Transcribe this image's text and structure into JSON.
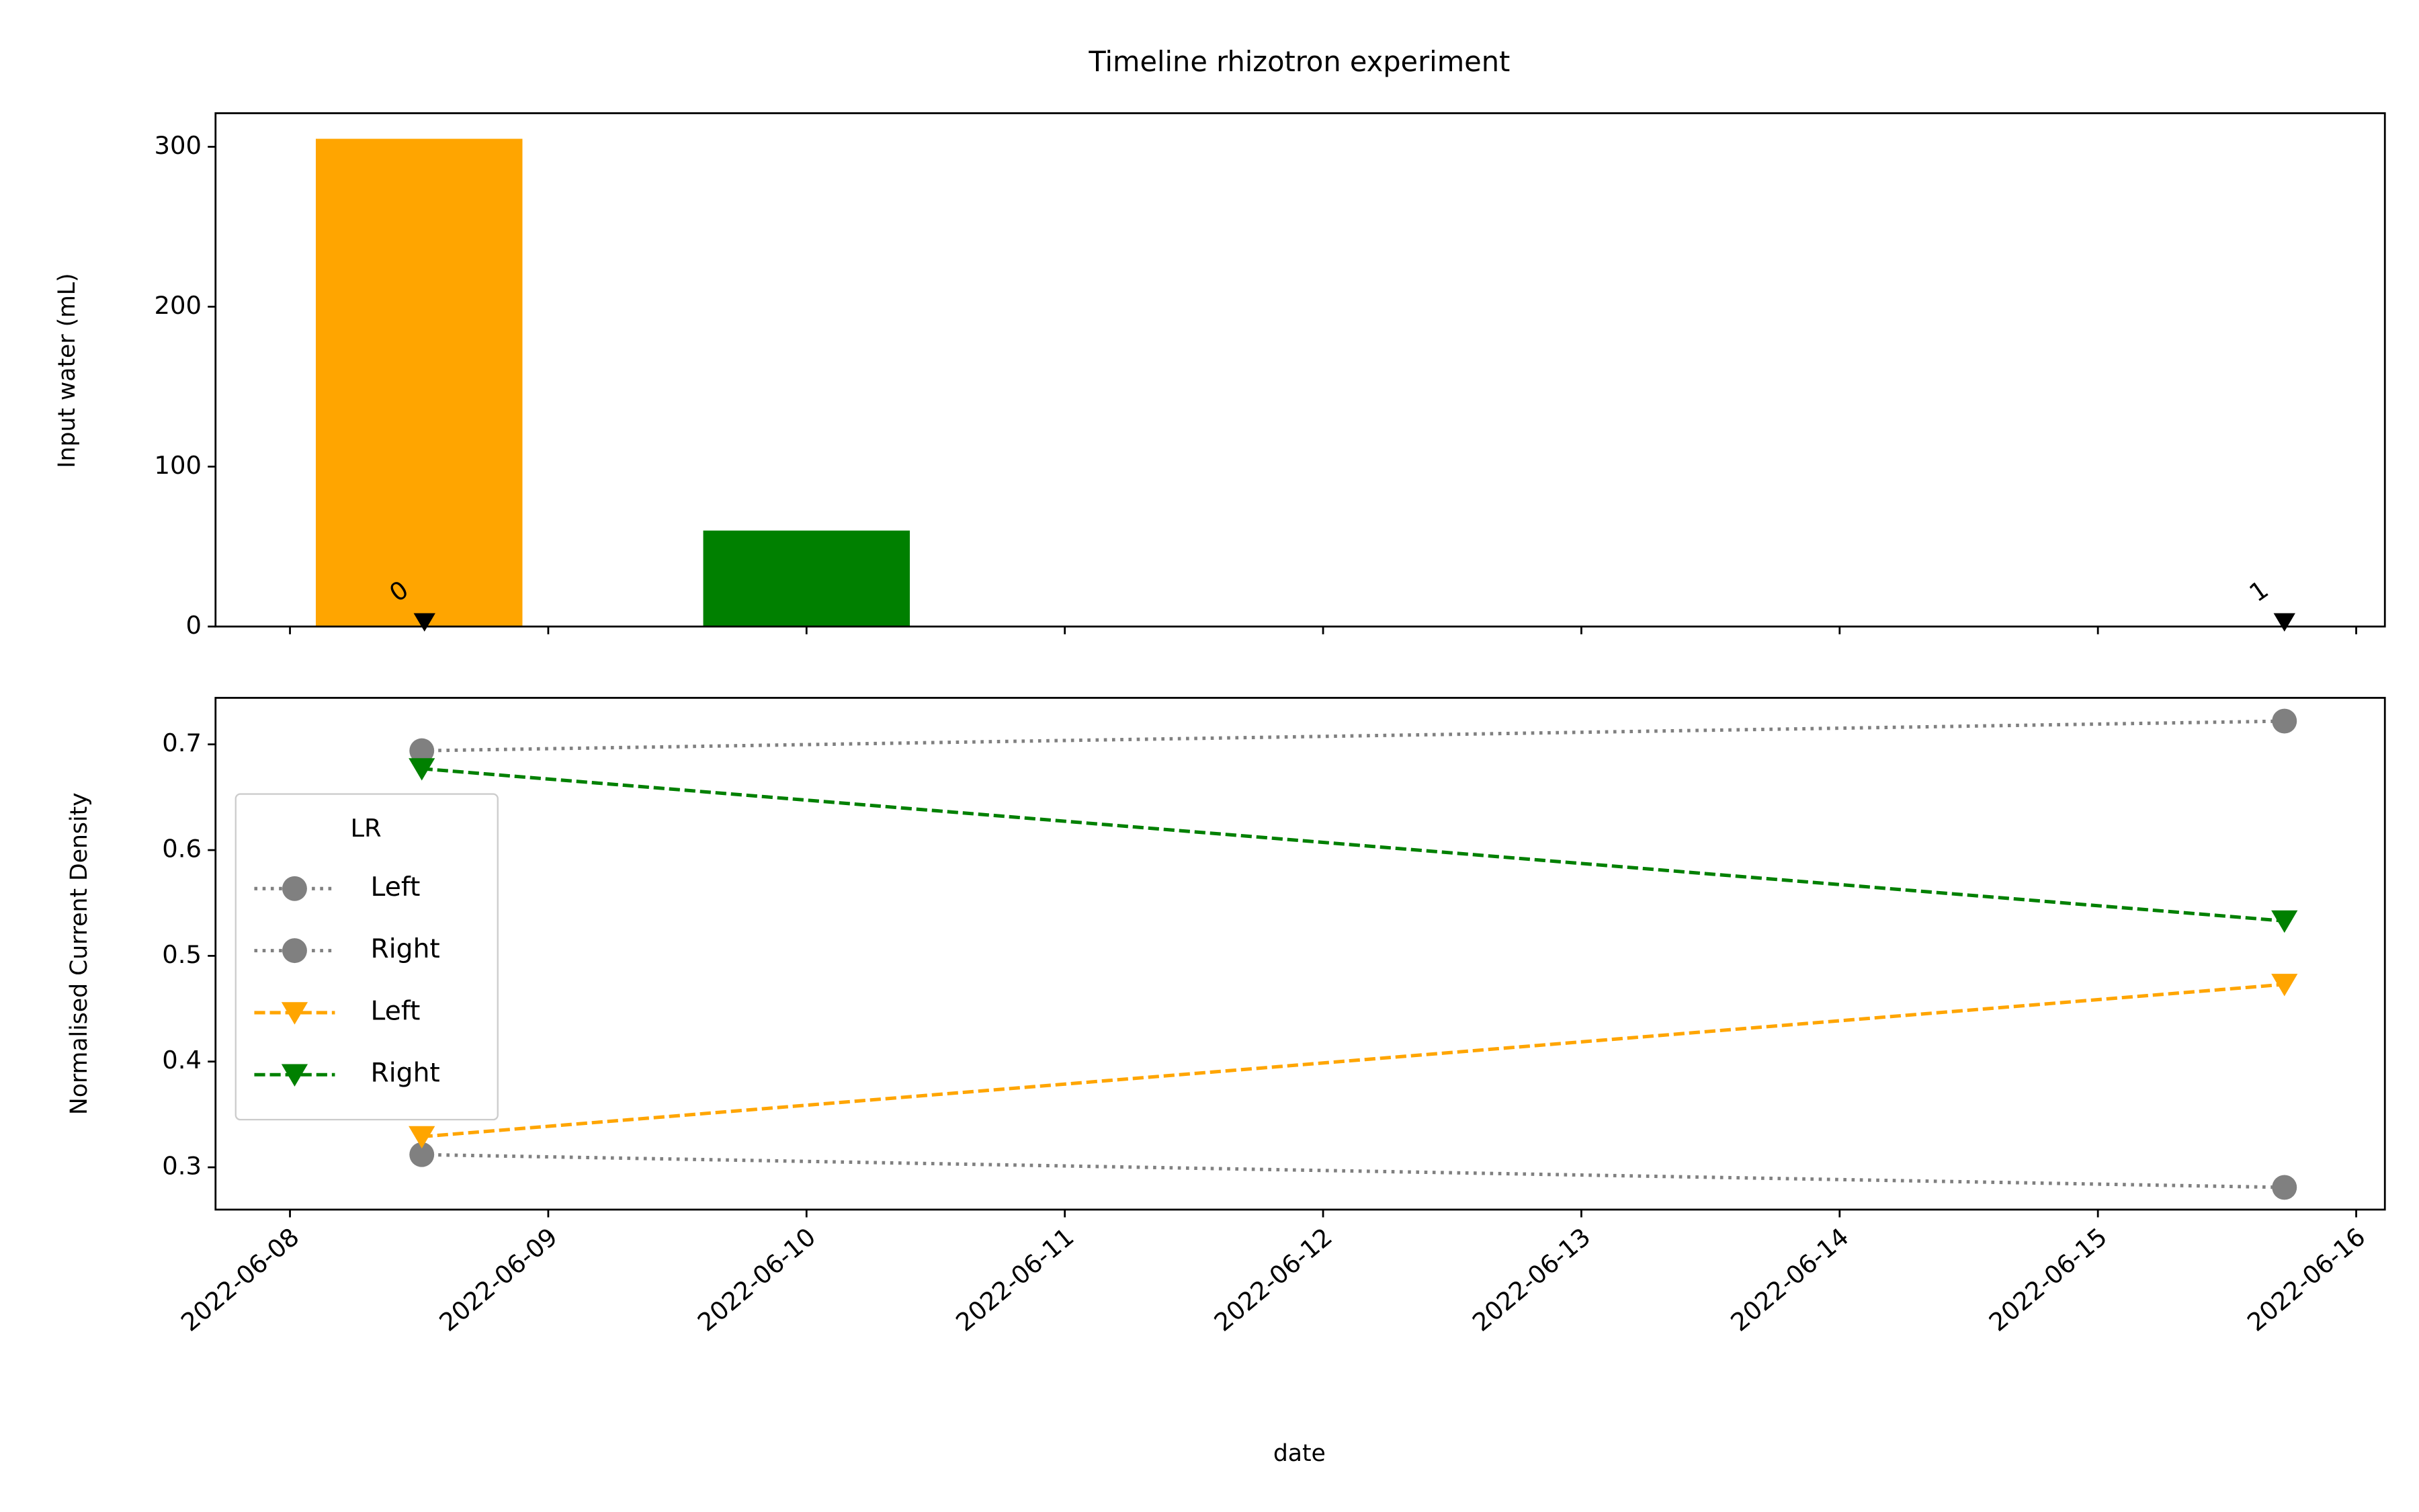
{
  "chart_data": [
    {
      "type": "bar",
      "title": "Timeline rhizotron experiment",
      "y_label": "Input water (mL)",
      "x": [
        "2022-06-08T12:00",
        "2022-06-10T00:00"
      ],
      "values": [
        305,
        60
      ],
      "colors": [
        "#ffa500",
        "#008000"
      ],
      "xlim": [
        "2022-06-07T17:05",
        "2022-06-16T02:40"
      ],
      "ylim": [
        0,
        321
      ],
      "yticks": [
        0,
        100,
        200,
        300
      ],
      "annotations": [
        {
          "x": "2022-06-08T12:30",
          "y": 0,
          "text": "0"
        },
        {
          "x": "2022-06-15T17:20",
          "y": 0,
          "text": "1"
        }
      ]
    },
    {
      "type": "line",
      "y_label": "Normalised Current Density",
      "x_label": "date",
      "x": [
        "2022-06-08T12:15",
        "2022-06-15T17:20"
      ],
      "series": [
        {
          "name": "Left",
          "color": "#808080",
          "marker": "circle",
          "linestyle": "dotted",
          "values": [
            0.312,
            0.281
          ]
        },
        {
          "name": "Right",
          "color": "#808080",
          "marker": "circle",
          "linestyle": "dotted",
          "values": [
            0.694,
            0.722
          ]
        },
        {
          "name": "Left",
          "color": "#ffa500",
          "marker": "triangle-down",
          "linestyle": "dashed",
          "values": [
            0.329,
            0.473
          ]
        },
        {
          "name": "Right",
          "color": "#008000",
          "marker": "triangle-down",
          "linestyle": "dashed",
          "values": [
            0.677,
            0.533
          ]
        }
      ],
      "legend_title": "LR",
      "legend_loc": "center left",
      "xlim": [
        "2022-06-07T17:05",
        "2022-06-16T02:40"
      ],
      "xticks": [
        "2022-06-08",
        "2022-06-09",
        "2022-06-10",
        "2022-06-11",
        "2022-06-12",
        "2022-06-13",
        "2022-06-14",
        "2022-06-15",
        "2022-06-16"
      ],
      "ylim": [
        0.26,
        0.744
      ],
      "yticks": [
        0.3,
        0.4,
        0.5,
        0.6,
        0.7
      ]
    }
  ]
}
